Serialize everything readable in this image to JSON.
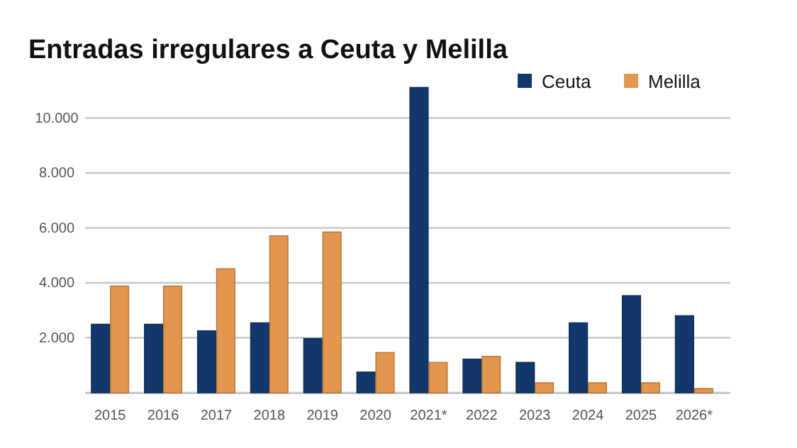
{
  "chart_data": {
    "type": "bar",
    "title": "Entradas irregulares a Ceuta y Melilla",
    "categories": [
      "2015",
      "2016",
      "2017",
      "2018",
      "2019",
      "2020",
      "2021*",
      "2022",
      "2023",
      "2024",
      "2025",
      "2026*"
    ],
    "series": [
      {
        "name": "Ceuta",
        "color": "#12386b",
        "values": [
          2490,
          2490,
          2250,
          2540,
          1970,
          750,
          11110,
          1220,
          1100,
          2540,
          3530,
          2800
        ]
      },
      {
        "name": "Melilla",
        "color": "#e3964e",
        "values": [
          3880,
          3880,
          4510,
          5710,
          5850,
          1460,
          1100,
          1320,
          360,
          360,
          360,
          150
        ]
      }
    ],
    "ylim": [
      0,
      11200
    ],
    "yticks": [
      {
        "value": 0,
        "label": null
      },
      {
        "value": 2000,
        "label": "2.000"
      },
      {
        "value": 4000,
        "label": "4.000"
      },
      {
        "value": 6000,
        "label": "6.000"
      },
      {
        "value": 8000,
        "label": "8.000"
      },
      {
        "value": 10000,
        "label": "10.000"
      }
    ],
    "grid": "y",
    "legend": "top right"
  }
}
